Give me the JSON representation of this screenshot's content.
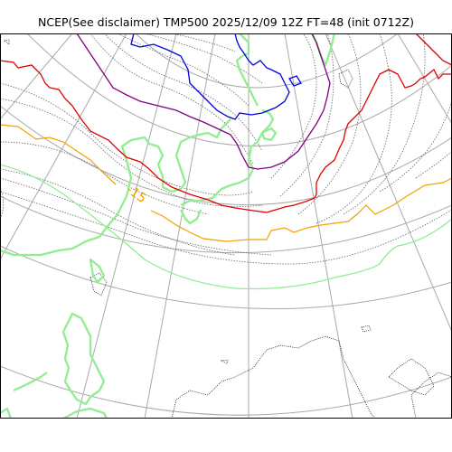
{
  "title": "NCEP(See disclaimer) TMP500 2025/12/09 12Z FT=48 (init 0712Z)",
  "contour_labels": [
    {
      "text": "-15",
      "color": "#f5a000"
    }
  ],
  "colors": {
    "graticule": "#a9a9a9",
    "coastline": "#000000",
    "isotherm_dotted": "#666666",
    "isotherm_orange": "#f5a000",
    "isotherm_red": "#e00000",
    "isotherm_purple": "#800080",
    "isotherm_blue": "#0000e0",
    "isotherm_green": "#90ee90",
    "frame": "#000000"
  }
}
